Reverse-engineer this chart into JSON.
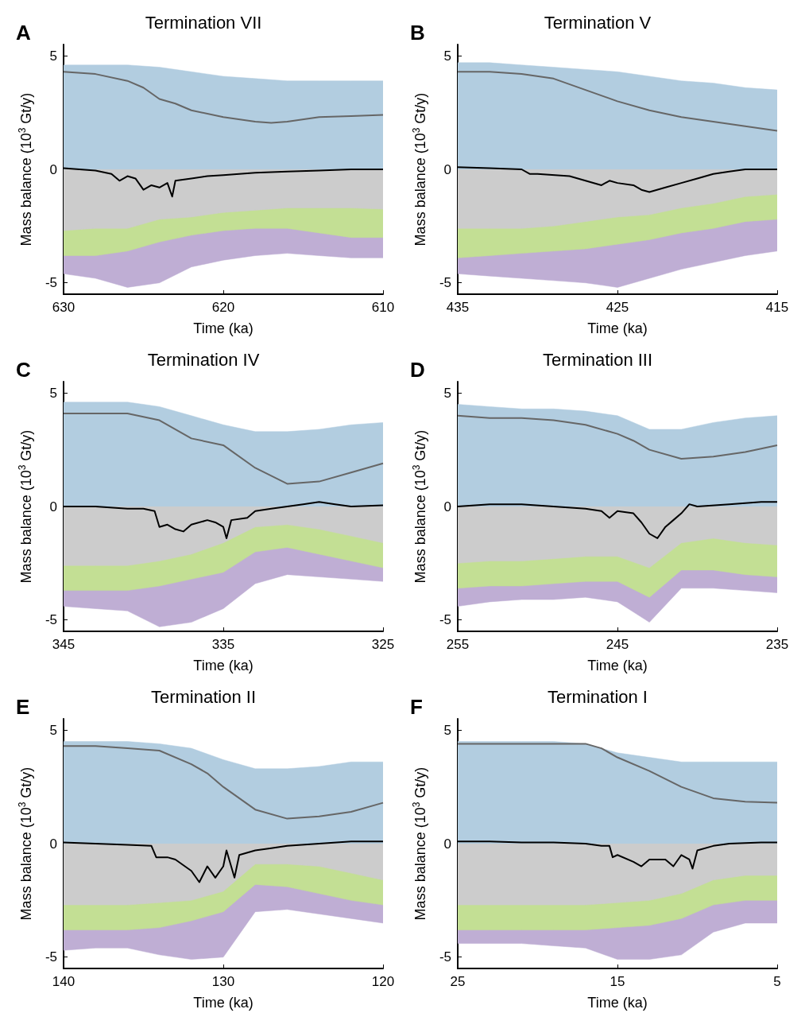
{
  "chart_data": [
    {
      "type": "area",
      "title": "Termination VII",
      "annotations": [
        "A"
      ],
      "xlabel": "Time (ka)",
      "ylabel": "Mass balance (10$^{3}$ Gt/y)",
      "x": [
        630,
        628,
        626,
        624,
        622,
        620,
        618,
        616,
        614,
        612,
        610
      ],
      "xlim": [
        630,
        610
      ],
      "xticks": [
        630,
        620,
        610
      ],
      "ylim": [
        -5.5,
        5.5
      ],
      "yticks": [
        -5,
        0,
        5
      ],
      "series": [
        {
          "color": "#b2cde0",
          "values": [
            4.6,
            4.6,
            4.6,
            4.5,
            4.3,
            4.1,
            4.0,
            3.9,
            3.9,
            3.9,
            3.9
          ]
        },
        {
          "color": "#bfaed4",
          "values": [
            -4.6,
            -4.8,
            -5.2,
            -5.0,
            -4.3,
            -4.0,
            -3.8,
            -3.7,
            -3.8,
            -3.9,
            -3.9
          ]
        },
        {
          "color": "#c3df94",
          "values": [
            -3.8,
            -3.8,
            -3.6,
            -3.2,
            -2.9,
            -2.7,
            -2.6,
            -2.6,
            -2.8,
            -3.0,
            -3.0
          ]
        },
        {
          "color": "#cccccc",
          "values": [
            -2.7,
            -2.6,
            -2.6,
            -2.2,
            -2.1,
            -1.9,
            -1.8,
            -1.7,
            -1.7,
            -1.7,
            -1.75
          ]
        },
        {
          "type": "line",
          "color": "#666666",
          "x": [
            630,
            628,
            626,
            625,
            624,
            623,
            622,
            620,
            618,
            617,
            616,
            614,
            612,
            610
          ],
          "values": [
            4.3,
            4.2,
            3.9,
            3.6,
            3.1,
            2.9,
            2.6,
            2.3,
            2.1,
            2.05,
            2.1,
            2.3,
            2.35,
            2.4
          ]
        },
        {
          "type": "line",
          "color": "#000000",
          "x": [
            630,
            628,
            627,
            626.5,
            626,
            625.5,
            625,
            624.5,
            624,
            623.5,
            623.2,
            623,
            622,
            621,
            620,
            618,
            616,
            614,
            612,
            610
          ],
          "values": [
            0.05,
            -0.05,
            -0.2,
            -0.5,
            -0.3,
            -0.4,
            -0.9,
            -0.7,
            -0.8,
            -0.6,
            -1.2,
            -0.5,
            -0.4,
            -0.3,
            -0.25,
            -0.15,
            -0.1,
            -0.05,
            0.0,
            0.0
          ]
        }
      ]
    },
    {
      "type": "area",
      "title": "Termination V",
      "annotations": [
        "B"
      ],
      "xlabel": "Time (ka)",
      "ylabel": "Mass balance (10$^{3}$ Gt/y)",
      "x": [
        435,
        433,
        431,
        429,
        427,
        425,
        423,
        421,
        419,
        417,
        415
      ],
      "xlim": [
        435,
        415
      ],
      "xticks": [
        435,
        425,
        415
      ],
      "ylim": [
        -5.5,
        5.5
      ],
      "yticks": [
        -5,
        0,
        5
      ],
      "series": [
        {
          "color": "#b2cde0",
          "values": [
            4.7,
            4.7,
            4.6,
            4.5,
            4.4,
            4.3,
            4.1,
            3.9,
            3.8,
            3.6,
            3.5
          ]
        },
        {
          "color": "#bfaed4",
          "values": [
            -4.6,
            -4.7,
            -4.8,
            -4.9,
            -5.0,
            -5.2,
            -4.8,
            -4.4,
            -4.1,
            -3.8,
            -3.6
          ]
        },
        {
          "color": "#c3df94",
          "values": [
            -3.9,
            -3.8,
            -3.7,
            -3.6,
            -3.5,
            -3.3,
            -3.1,
            -2.8,
            -2.6,
            -2.3,
            -2.2
          ]
        },
        {
          "color": "#cccccc",
          "values": [
            -2.6,
            -2.6,
            -2.6,
            -2.5,
            -2.3,
            -2.1,
            -2.0,
            -1.7,
            -1.5,
            -1.2,
            -1.1
          ]
        },
        {
          "type": "line",
          "color": "#666666",
          "x": [
            435,
            433,
            431,
            429,
            427,
            425,
            423,
            421,
            419,
            417,
            415
          ],
          "values": [
            4.3,
            4.3,
            4.2,
            4.0,
            3.5,
            3.0,
            2.6,
            2.3,
            2.1,
            1.9,
            1.7
          ]
        },
        {
          "type": "line",
          "color": "#000000",
          "x": [
            435,
            433,
            431,
            430.5,
            430,
            428,
            427,
            426,
            425.5,
            425,
            424,
            423.5,
            423,
            422,
            421,
            420,
            419,
            418,
            417,
            415
          ],
          "values": [
            0.1,
            0.05,
            0.0,
            -0.2,
            -0.2,
            -0.3,
            -0.5,
            -0.7,
            -0.5,
            -0.6,
            -0.7,
            -0.9,
            -1.0,
            -0.8,
            -0.6,
            -0.4,
            -0.2,
            -0.1,
            0.0,
            0.0
          ]
        }
      ]
    },
    {
      "type": "area",
      "title": "Termination IV",
      "annotations": [
        "C"
      ],
      "xlabel": "Time (ka)",
      "ylabel": "Mass balance (10$^{3}$ Gt/y)",
      "x": [
        345,
        343,
        341,
        339,
        337,
        335,
        333,
        331,
        329,
        327,
        325
      ],
      "xlim": [
        345,
        325
      ],
      "xticks": [
        345,
        335,
        325
      ],
      "ylim": [
        -5.5,
        5.5
      ],
      "yticks": [
        -5,
        0,
        5
      ],
      "series": [
        {
          "color": "#b2cde0",
          "values": [
            4.6,
            4.6,
            4.6,
            4.4,
            4.0,
            3.6,
            3.3,
            3.3,
            3.4,
            3.6,
            3.7
          ]
        },
        {
          "color": "#bfaed4",
          "values": [
            -4.4,
            -4.5,
            -4.6,
            -5.3,
            -5.1,
            -4.5,
            -3.4,
            -3.0,
            -3.1,
            -3.2,
            -3.3
          ]
        },
        {
          "color": "#c3df94",
          "values": [
            -3.7,
            -3.7,
            -3.7,
            -3.5,
            -3.2,
            -2.9,
            -2.0,
            -1.8,
            -2.1,
            -2.4,
            -2.7
          ]
        },
        {
          "color": "#cccccc",
          "values": [
            -2.6,
            -2.6,
            -2.6,
            -2.4,
            -2.1,
            -1.6,
            -0.9,
            -0.8,
            -1.0,
            -1.3,
            -1.6
          ]
        },
        {
          "type": "line",
          "color": "#666666",
          "x": [
            345,
            343,
            341,
            339,
            337,
            335,
            333,
            331,
            329,
            327,
            325
          ],
          "values": [
            4.1,
            4.1,
            4.1,
            3.8,
            3.0,
            2.7,
            1.7,
            1.0,
            1.1,
            1.5,
            1.9
          ]
        },
        {
          "type": "line",
          "color": "#000000",
          "x": [
            345,
            343,
            341,
            340,
            339.3,
            339,
            338.5,
            338,
            337.5,
            337,
            336,
            335.5,
            335,
            334.8,
            334.5,
            333.5,
            333,
            332,
            331,
            330,
            329,
            328,
            327,
            325
          ],
          "values": [
            0.0,
            0.0,
            -0.1,
            -0.1,
            -0.2,
            -0.9,
            -0.8,
            -1.0,
            -1.1,
            -0.8,
            -0.6,
            -0.7,
            -0.9,
            -1.4,
            -0.6,
            -0.5,
            -0.2,
            -0.1,
            0.0,
            0.1,
            0.2,
            0.1,
            0.0,
            0.05
          ]
        }
      ]
    },
    {
      "type": "area",
      "title": "Termination III",
      "annotations": [
        "D"
      ],
      "xlabel": "Time (ka)",
      "ylabel": "Mass balance (10$^{3}$ Gt/y)",
      "x": [
        255,
        253,
        251,
        249,
        247,
        245,
        243,
        241,
        239,
        237,
        235
      ],
      "xlim": [
        255,
        235
      ],
      "xticks": [
        255,
        245,
        235
      ],
      "ylim": [
        -5.5,
        5.5
      ],
      "yticks": [
        -5,
        0,
        5
      ],
      "series": [
        {
          "color": "#b2cde0",
          "values": [
            4.5,
            4.4,
            4.3,
            4.3,
            4.2,
            4.0,
            3.4,
            3.4,
            3.7,
            3.9,
            4.0
          ]
        },
        {
          "color": "#bfaed4",
          "values": [
            -4.4,
            -4.2,
            -4.1,
            -4.1,
            -4.0,
            -4.2,
            -5.1,
            -3.6,
            -3.6,
            -3.7,
            -3.8
          ]
        },
        {
          "color": "#c3df94",
          "values": [
            -3.6,
            -3.5,
            -3.5,
            -3.4,
            -3.3,
            -3.3,
            -4.0,
            -2.8,
            -2.8,
            -3.0,
            -3.1
          ]
        },
        {
          "color": "#cccccc",
          "values": [
            -2.5,
            -2.4,
            -2.4,
            -2.3,
            -2.2,
            -2.2,
            -2.7,
            -1.6,
            -1.4,
            -1.6,
            -1.7
          ]
        },
        {
          "type": "line",
          "color": "#666666",
          "x": [
            255,
            253,
            251,
            249,
            247,
            245,
            244,
            243,
            241,
            239,
            237,
            235
          ],
          "values": [
            4.0,
            3.9,
            3.9,
            3.8,
            3.6,
            3.2,
            2.9,
            2.5,
            2.1,
            2.2,
            2.4,
            2.7
          ]
        },
        {
          "type": "line",
          "color": "#000000",
          "x": [
            255,
            253,
            251,
            249,
            247,
            246,
            245.5,
            245,
            244,
            243.5,
            243,
            242.5,
            242,
            241.5,
            241,
            240.5,
            240,
            238,
            236,
            235
          ],
          "values": [
            0.0,
            0.1,
            0.1,
            0.0,
            -0.1,
            -0.2,
            -0.5,
            -0.2,
            -0.3,
            -0.7,
            -1.2,
            -1.4,
            -0.9,
            -0.6,
            -0.3,
            0.1,
            0.0,
            0.1,
            0.2,
            0.2
          ]
        }
      ]
    },
    {
      "type": "area",
      "title": "Termination II",
      "annotations": [
        "E"
      ],
      "xlabel": "Time (ka)",
      "ylabel": "Mass balance (10$^{3}$ Gt/y)",
      "x": [
        140,
        138,
        136,
        134,
        132,
        130,
        128,
        126,
        124,
        122,
        120
      ],
      "xlim": [
        140,
        120
      ],
      "xticks": [
        140,
        130,
        120
      ],
      "ylim": [
        -5.5,
        5.5
      ],
      "yticks": [
        -5,
        0,
        5
      ],
      "series": [
        {
          "color": "#b2cde0",
          "values": [
            4.5,
            4.5,
            4.5,
            4.4,
            4.2,
            3.7,
            3.3,
            3.3,
            3.4,
            3.6,
            3.6
          ]
        },
        {
          "color": "#bfaed4",
          "values": [
            -4.7,
            -4.6,
            -4.6,
            -4.9,
            -5.1,
            -5.0,
            -3.0,
            -2.9,
            -3.1,
            -3.3,
            -3.5
          ]
        },
        {
          "color": "#c3df94",
          "values": [
            -3.8,
            -3.8,
            -3.8,
            -3.7,
            -3.4,
            -3.0,
            -1.8,
            -1.9,
            -2.2,
            -2.5,
            -2.7
          ]
        },
        {
          "color": "#cccccc",
          "values": [
            -2.7,
            -2.7,
            -2.7,
            -2.6,
            -2.5,
            -2.1,
            -0.9,
            -0.9,
            -1.0,
            -1.3,
            -1.6
          ]
        },
        {
          "type": "line",
          "color": "#666666",
          "x": [
            140,
            138,
            136,
            134,
            132,
            131,
            130,
            128,
            126,
            124,
            122,
            120
          ],
          "values": [
            4.3,
            4.3,
            4.2,
            4.1,
            3.5,
            3.1,
            2.5,
            1.5,
            1.1,
            1.2,
            1.4,
            1.8
          ]
        },
        {
          "type": "line",
          "color": "#000000",
          "x": [
            140,
            138,
            136,
            134.5,
            134.2,
            133.5,
            133,
            132,
            131.5,
            131,
            130.5,
            130,
            129.8,
            129.3,
            129,
            128,
            127,
            126,
            124,
            122,
            120
          ],
          "values": [
            0.05,
            0.0,
            -0.05,
            -0.1,
            -0.6,
            -0.6,
            -0.7,
            -1.2,
            -1.7,
            -1.0,
            -1.5,
            -1.0,
            -0.3,
            -1.5,
            -0.5,
            -0.3,
            -0.2,
            -0.1,
            0.0,
            0.1,
            0.1
          ]
        }
      ]
    },
    {
      "type": "area",
      "title": "Termination I",
      "annotations": [
        "F"
      ],
      "xlabel": "Time (ka)",
      "ylabel": "Mass balance (10$^{3}$ Gt/y)",
      "x": [
        25,
        23,
        21,
        19,
        17,
        15,
        13,
        11,
        9,
        7,
        5
      ],
      "xlim": [
        25,
        5
      ],
      "xticks": [
        25,
        15,
        5
      ],
      "ylim": [
        -5.5,
        5.5
      ],
      "yticks": [
        -5,
        0,
        5
      ],
      "series": [
        {
          "color": "#b2cde0",
          "values": [
            4.5,
            4.5,
            4.5,
            4.5,
            4.4,
            4.0,
            3.8,
            3.6,
            3.6,
            3.6,
            3.6
          ]
        },
        {
          "color": "#bfaed4",
          "values": [
            -4.4,
            -4.4,
            -4.4,
            -4.5,
            -4.6,
            -5.1,
            -5.1,
            -4.9,
            -3.9,
            -3.5,
            -3.5
          ]
        },
        {
          "color": "#c3df94",
          "values": [
            -3.8,
            -3.8,
            -3.8,
            -3.8,
            -3.8,
            -3.7,
            -3.6,
            -3.3,
            -2.7,
            -2.5,
            -2.5
          ]
        },
        {
          "color": "#cccccc",
          "values": [
            -2.7,
            -2.7,
            -2.7,
            -2.7,
            -2.7,
            -2.6,
            -2.5,
            -2.2,
            -1.6,
            -1.4,
            -1.4
          ]
        },
        {
          "type": "line",
          "color": "#666666",
          "x": [
            25,
            23,
            21,
            19,
            17,
            16,
            15,
            13,
            11,
            9,
            7,
            5
          ],
          "values": [
            4.4,
            4.4,
            4.4,
            4.4,
            4.4,
            4.2,
            3.8,
            3.2,
            2.5,
            2.0,
            1.85,
            1.8
          ]
        },
        {
          "type": "line",
          "color": "#000000",
          "x": [
            25,
            23,
            21,
            19,
            17,
            16,
            15.5,
            15.3,
            15,
            14,
            13.5,
            13,
            12,
            11.5,
            11,
            10.5,
            10.3,
            10,
            9,
            8,
            6,
            5
          ],
          "values": [
            0.1,
            0.1,
            0.05,
            0.05,
            0.0,
            -0.1,
            -0.1,
            -0.6,
            -0.5,
            -0.8,
            -1.0,
            -0.7,
            -0.7,
            -1.0,
            -0.5,
            -0.7,
            -1.1,
            -0.3,
            -0.1,
            0.0,
            0.05,
            0.05
          ]
        }
      ]
    }
  ]
}
